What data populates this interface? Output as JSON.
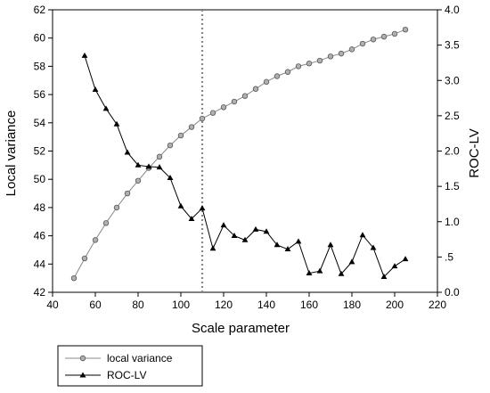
{
  "chart_data": {
    "type": "line",
    "xlabel": "Scale parameter",
    "ylabel_left": "Local variance",
    "ylabel_right": "ROC-LV",
    "xlim": [
      40,
      220
    ],
    "ylim_left": [
      42,
      62
    ],
    "ylim_right": [
      0.0,
      4.0
    ],
    "x_ticks": [
      "40",
      "60",
      "80",
      "100",
      "120",
      "140",
      "160",
      "180",
      "200",
      "220"
    ],
    "y_left_ticks": [
      "42",
      "44",
      "46",
      "48",
      "50",
      "52",
      "54",
      "56",
      "58",
      "60",
      "62"
    ],
    "y_right_ticks": [
      "0.0",
      ".5",
      "1.0",
      "1.5",
      "2.0",
      "2.5",
      "3.0",
      "3.5",
      "4.0"
    ],
    "grid": false,
    "reference_line_x": 110,
    "legend_position": "bottom-left outside",
    "series": [
      {
        "name": "local variance",
        "axis": "left",
        "marker": "circle",
        "color": "#888888",
        "x": [
          50,
          55,
          60,
          65,
          70,
          75,
          80,
          85,
          90,
          95,
          100,
          105,
          110,
          115,
          120,
          125,
          130,
          135,
          140,
          145,
          150,
          155,
          160,
          165,
          170,
          175,
          180,
          185,
          190,
          195,
          200,
          205
        ],
        "values": [
          43.0,
          44.4,
          45.7,
          46.9,
          48.0,
          49.0,
          49.9,
          50.8,
          51.6,
          52.4,
          53.1,
          53.7,
          54.3,
          54.7,
          55.1,
          55.5,
          55.9,
          56.4,
          56.9,
          57.3,
          57.6,
          58.0,
          58.2,
          58.4,
          58.7,
          58.9,
          59.2,
          59.6,
          59.9,
          60.1,
          60.3,
          60.6
        ]
      },
      {
        "name": "ROC-LV",
        "axis": "right",
        "marker": "triangle",
        "color": "#000000",
        "x": [
          55,
          60,
          65,
          70,
          75,
          80,
          85,
          90,
          95,
          100,
          105,
          110,
          115,
          120,
          125,
          130,
          135,
          140,
          145,
          150,
          155,
          160,
          165,
          170,
          175,
          180,
          185,
          190,
          195,
          200,
          205
        ],
        "values": [
          3.35,
          2.87,
          2.6,
          2.38,
          1.98,
          1.8,
          1.78,
          1.77,
          1.62,
          1.22,
          1.04,
          1.19,
          0.62,
          0.95,
          0.8,
          0.74,
          0.89,
          0.86,
          0.67,
          0.61,
          0.72,
          0.27,
          0.3,
          0.67,
          0.26,
          0.43,
          0.81,
          0.63,
          0.22,
          0.37,
          0.47
        ]
      }
    ]
  }
}
